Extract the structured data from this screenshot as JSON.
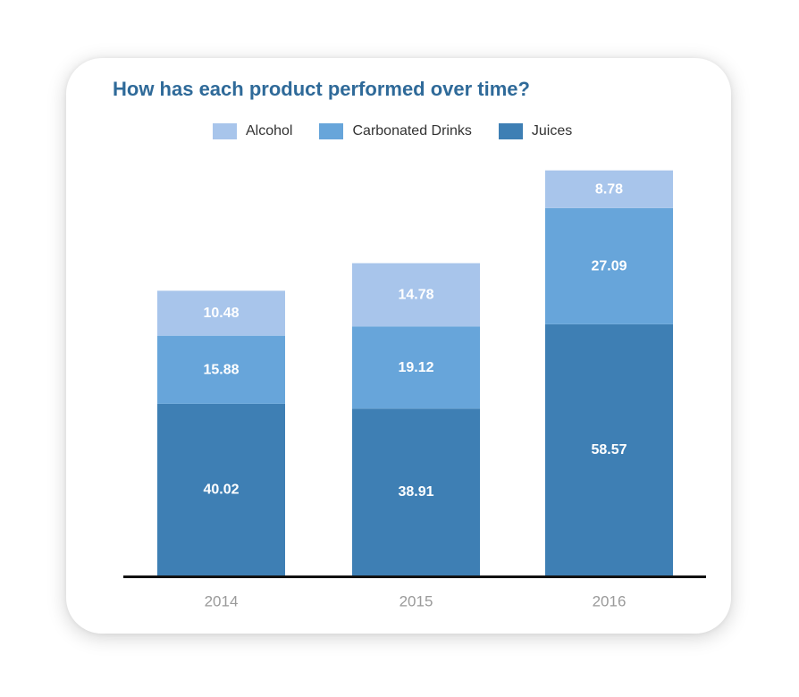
{
  "chart_data": {
    "type": "bar",
    "stacked": true,
    "title": "How has each product performed over time?",
    "categories": [
      "2014",
      "2015",
      "2016"
    ],
    "series": [
      {
        "name": "Juices",
        "color": "#3e7fb4",
        "values": [
          40.02,
          38.91,
          58.57
        ]
      },
      {
        "name": "Carbonated Drinks",
        "color": "#67a5da",
        "values": [
          15.88,
          19.12,
          27.09
        ]
      },
      {
        "name": "Alcohol",
        "color": "#a8c5eb",
        "values": [
          10.48,
          14.78,
          8.78
        ]
      }
    ],
    "legend_order": [
      "Alcohol",
      "Carbonated Drinks",
      "Juices"
    ],
    "legend_position": "top",
    "grid": false,
    "ylim": [
      0,
      100
    ],
    "value_labels": true
  }
}
